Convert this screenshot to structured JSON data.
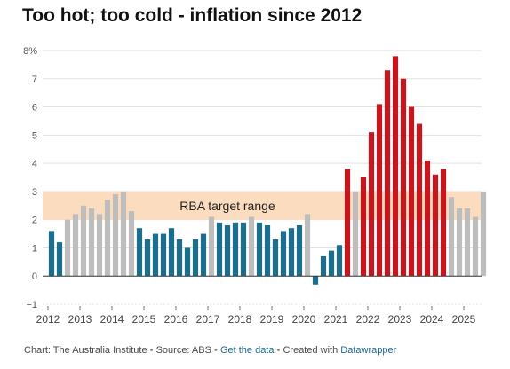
{
  "title": "Too hot; too cold - inflation since 2012",
  "footer": {
    "credit": "Chart: The Australia Institute",
    "source": "Source: ABS",
    "get_data": "Get the data",
    "created_with_prefix": "Created with",
    "tool": "Datawrapper"
  },
  "chart_data": {
    "type": "bar",
    "title": "Too hot; too cold - inflation since 2012",
    "xlabel": "",
    "ylabel": "",
    "ylim": [
      -1,
      8
    ],
    "grid": true,
    "yticks": [
      -1,
      0,
      1,
      2,
      3,
      4,
      5,
      6,
      7,
      8
    ],
    "ytick_labels": [
      "−1",
      "0",
      "1",
      "2",
      "3",
      "4",
      "5",
      "6",
      "7",
      "8%"
    ],
    "xticks": [
      "2012",
      "2013",
      "2014",
      "2015",
      "2016",
      "2017",
      "2018",
      "2019",
      "2020",
      "2021",
      "2022",
      "2023",
      "2024",
      "2025"
    ],
    "target_band": {
      "label": "RBA target range",
      "from": 2,
      "to": 3,
      "color": "#fcdcbf"
    },
    "colors": {
      "below": "#1a6f8e",
      "within": "#bdbdbd",
      "above": "#c9151e"
    },
    "categories": [
      "2012 Q1",
      "2012 Q2",
      "2012 Q3",
      "2012 Q4",
      "2013 Q1",
      "2013 Q2",
      "2013 Q3",
      "2013 Q4",
      "2014 Q1",
      "2014 Q2",
      "2014 Q3",
      "2014 Q4",
      "2015 Q1",
      "2015 Q2",
      "2015 Q3",
      "2015 Q4",
      "2016 Q1",
      "2016 Q2",
      "2016 Q3",
      "2016 Q4",
      "2017 Q1",
      "2017 Q2",
      "2017 Q3",
      "2017 Q4",
      "2018 Q1",
      "2018 Q2",
      "2018 Q3",
      "2018 Q4",
      "2019 Q1",
      "2019 Q2",
      "2019 Q3",
      "2019 Q4",
      "2020 Q1",
      "2020 Q2",
      "2020 Q3",
      "2020 Q4",
      "2021 Q1",
      "2021 Q2",
      "2021 Q3",
      "2021 Q4",
      "2022 Q1",
      "2022 Q2",
      "2022 Q3",
      "2022 Q4",
      "2023 Q1",
      "2023 Q2",
      "2023 Q3",
      "2023 Q4",
      "2024 Q1",
      "2024 Q2",
      "2024 Q3",
      "2024 Q4",
      "2025 Q1",
      "2025 Q2",
      "2025 Q3"
    ],
    "values": [
      1.6,
      1.2,
      2.0,
      2.2,
      2.5,
      2.4,
      2.2,
      2.7,
      2.9,
      3.0,
      2.3,
      1.7,
      1.3,
      1.5,
      1.5,
      1.7,
      1.3,
      1.0,
      1.3,
      1.5,
      2.1,
      1.9,
      1.8,
      1.9,
      1.9,
      2.1,
      1.9,
      1.8,
      1.3,
      1.6,
      1.7,
      1.8,
      2.2,
      -0.3,
      0.7,
      0.9,
      1.1,
      3.8,
      3.0,
      3.5,
      5.1,
      6.1,
      7.3,
      7.8,
      7.0,
      6.0,
      5.4,
      4.1,
      3.6,
      3.8,
      2.8,
      2.4,
      2.4,
      2.1,
      3.0
    ],
    "bar_category": [
      "below",
      "below",
      "within",
      "within",
      "within",
      "within",
      "within",
      "within",
      "within",
      "within",
      "within",
      "below",
      "below",
      "below",
      "below",
      "below",
      "below",
      "below",
      "below",
      "below",
      "within",
      "below",
      "below",
      "below",
      "below",
      "within",
      "below",
      "below",
      "below",
      "below",
      "below",
      "below",
      "within",
      "below",
      "below",
      "below",
      "below",
      "above",
      "within",
      "above",
      "above",
      "above",
      "above",
      "above",
      "above",
      "above",
      "above",
      "above",
      "above",
      "above",
      "within",
      "within",
      "within",
      "within",
      "within"
    ]
  }
}
